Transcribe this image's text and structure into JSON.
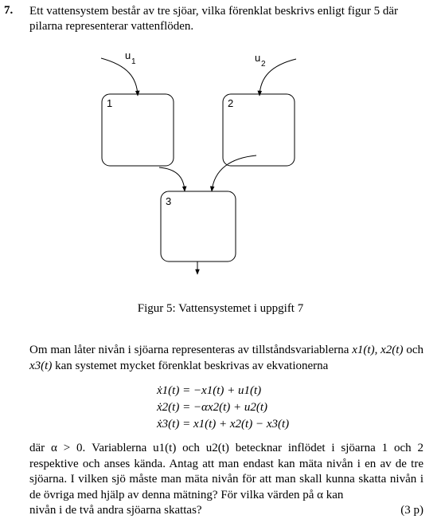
{
  "problem": {
    "number": "7.",
    "intro": "Ett vattensystem består av tre sjöar, vilka förenklat beskrivs enligt figur 5 där pilarna representerar vattenflöden."
  },
  "figure": {
    "input1_label": "u",
    "input1_sub": "1",
    "input2_label": "u",
    "input2_sub": "2",
    "lake1_label": "1",
    "lake2_label": "2",
    "lake3_label": "3",
    "caption": "Figur 5: Vattensystemet i uppgift 7"
  },
  "paragraph1": {
    "text_a": "Om man låter nivån i sjöarna representeras av tillståndsvariablerna ",
    "var_a": "x",
    "var_a_args": "1(t), x2(t)",
    "text_b": " och ",
    "var_b": "x3(t)",
    "text_c": " kan systemet mycket förenklat beskrivas av ekvationerna"
  },
  "equations": [
    "ẋ1(t) = −x1(t) + u1(t)",
    "ẋ2(t) = −αx2(t) + u2(t)",
    "ẋ3(t) = x1(t) + x2(t) − x3(t)"
  ],
  "paragraph2": {
    "text": "där α > 0. Variablerna u1(t) och u2(t) betecknar inflödet i sjöarna 1 och 2 respektive och anses kända. Antag att man endast kan mäta nivån i en av de tre sjöarna. I vilken sjö måste man mäta nivån för att man skall kunna skatta nivån i de övriga med hjälp av denna mätning? För vilka värden på α kan",
    "last_line": "nivån i de två andra sjöarna skattas?",
    "points": "(3 p)"
  }
}
